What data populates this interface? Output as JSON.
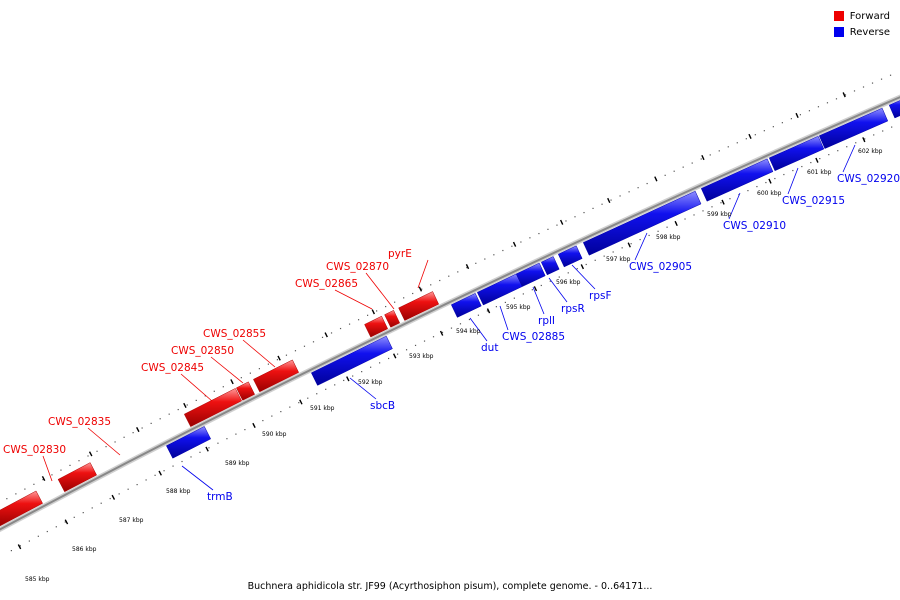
{
  "legend": {
    "forward_label": "Forward",
    "reverse_label": "Reverse",
    "forward_color": "#ee0000",
    "reverse_color": "#0000ee"
  },
  "footer": "Buchnera aphidicola str. JF99 (Acyrthosiphon pisum), complete genome. - 0..64171...",
  "map": {
    "backbone_color": "#888888",
    "tick_labels_fwd_side": [
      "589 kbp",
      "590 kbp",
      "591 kbp",
      "592 kbp",
      "593 kbp",
      "594 kbp",
      "595 kbp",
      "596 kbp",
      "597 kbp",
      "598 kbp",
      "599 kbp",
      "600 kbp",
      "601 kbp",
      "602 kbp"
    ],
    "tick_labels_low": [
      "585 kbp",
      "586 kbp",
      "587 kbp",
      "588 kbp"
    ],
    "genes": [
      {
        "name": "CWS_02830",
        "strand": "forward"
      },
      {
        "name": "CWS_02835",
        "strand": "forward"
      },
      {
        "name": "CWS_02845",
        "strand": "forward"
      },
      {
        "name": "CWS_02850",
        "strand": "forward"
      },
      {
        "name": "CWS_02855",
        "strand": "forward"
      },
      {
        "name": "CWS_02865",
        "strand": "forward"
      },
      {
        "name": "CWS_02870",
        "strand": "forward"
      },
      {
        "name": "pyrE",
        "strand": "forward"
      },
      {
        "name": "trmB",
        "strand": "reverse"
      },
      {
        "name": "sbcB",
        "strand": "reverse"
      },
      {
        "name": "dut",
        "strand": "reverse"
      },
      {
        "name": "CWS_02885",
        "strand": "reverse"
      },
      {
        "name": "rplI",
        "strand": "reverse"
      },
      {
        "name": "rpsR",
        "strand": "reverse"
      },
      {
        "name": "rpsF",
        "strand": "reverse"
      },
      {
        "name": "CWS_02905",
        "strand": "reverse"
      },
      {
        "name": "CWS_02910",
        "strand": "reverse"
      },
      {
        "name": "CWS_02915",
        "strand": "reverse"
      },
      {
        "name": "CWS_02920",
        "strand": "reverse"
      }
    ]
  }
}
